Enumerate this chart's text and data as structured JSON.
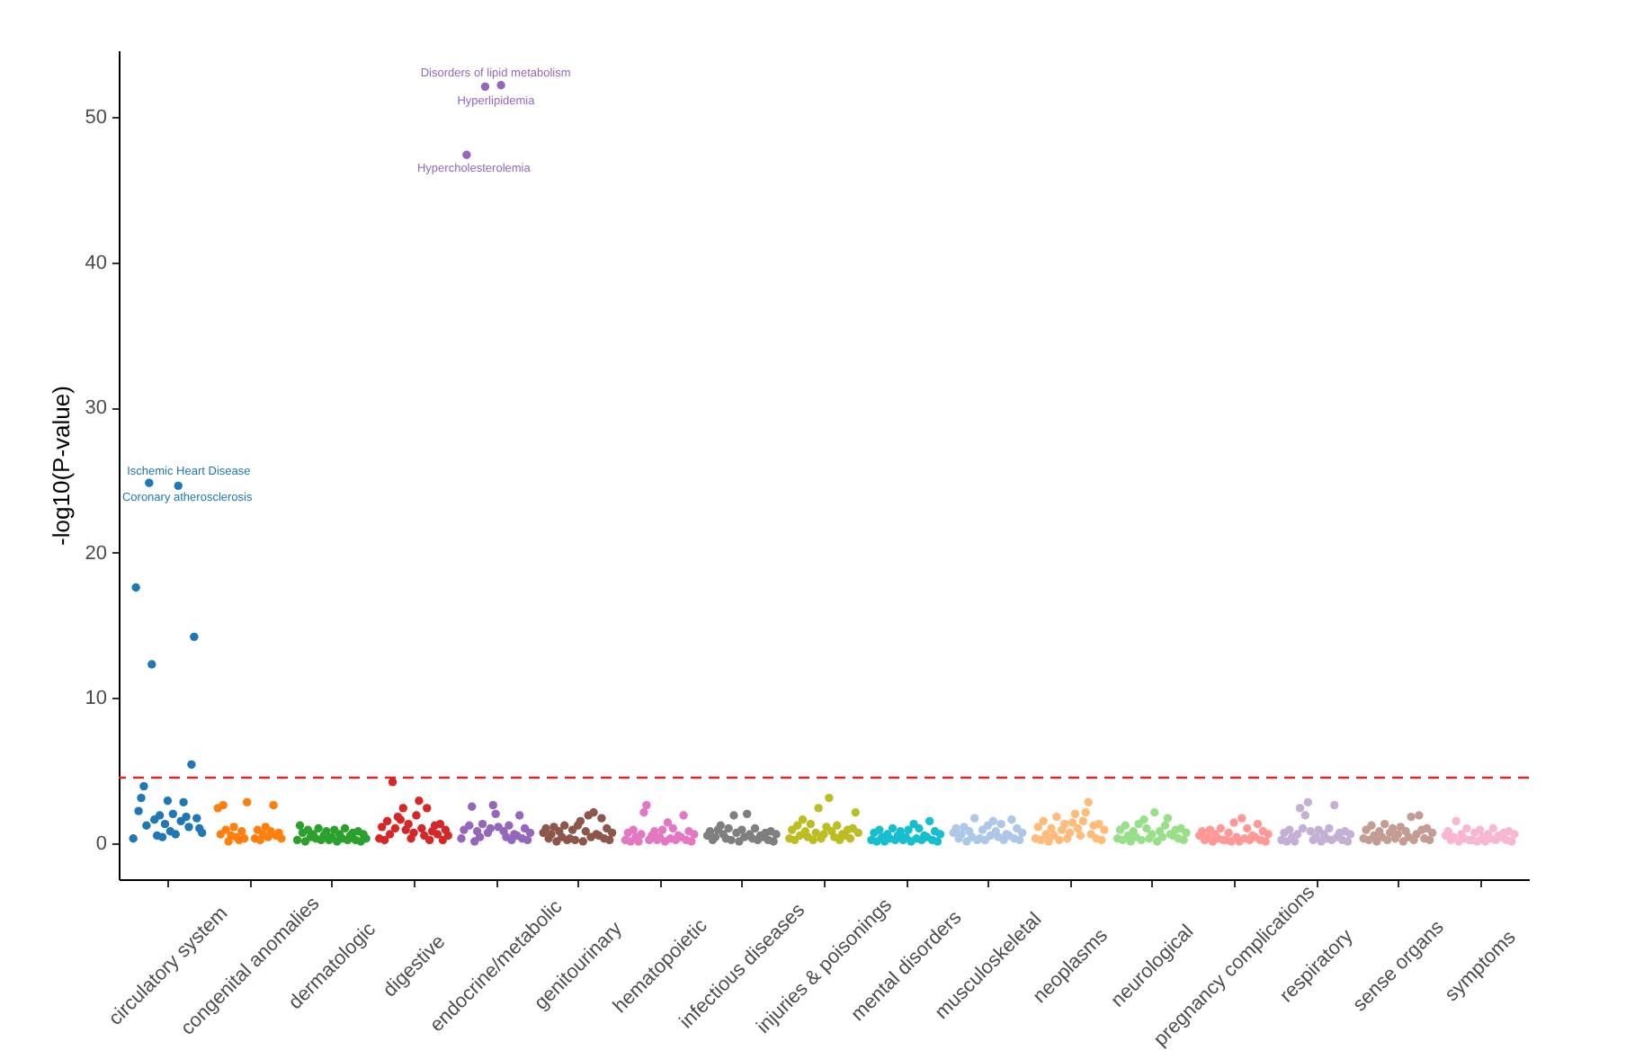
{
  "chart_data": {
    "type": "scatter",
    "ylabel": "-log10(P-value)",
    "marker": "circle",
    "ylim": [
      -2.5,
      54.6
    ],
    "yticks": [
      0,
      10,
      20,
      30,
      40,
      50
    ],
    "ref_lines": [
      {
        "axis": "y",
        "value": 4.5,
        "color": "#d62728",
        "line_style": "dashed"
      }
    ],
    "annotations": [
      {
        "text": "Ischemic Heart Disease",
        "y": 24.8
      },
      {
        "text": "Coronary atherosclerosis",
        "y": 24.6
      },
      {
        "text": "Disorders of lipid metabolism",
        "y": 52.2
      },
      {
        "text": "Hyperlipidemia",
        "y": 52.1
      },
      {
        "text": "Hypercholesterolemia",
        "y": 47.4
      }
    ],
    "categories": [
      null,
      null,
      null,
      null,
      null,
      null,
      null,
      null,
      null,
      null,
      null,
      null,
      null,
      null,
      null,
      null,
      null,
      null,
      "circulatory system",
      null,
      null,
      null,
      null,
      null,
      null,
      null,
      null,
      null,
      null,
      null,
      null,
      null,
      null,
      null,
      null,
      null,
      null,
      null,
      null,
      null,
      null,
      null,
      null,
      null,
      null,
      null,
      null,
      null,
      null,
      "congenital anomalies",
      null,
      null,
      null,
      null,
      null,
      null,
      null,
      null,
      null,
      null,
      null,
      null,
      null,
      null,
      null,
      null,
      null,
      null,
      null,
      null,
      null,
      null,
      null,
      null,
      null,
      null,
      null,
      null,
      null,
      null,
      "dermatologic",
      null,
      null,
      null,
      null,
      null,
      null,
      null,
      null,
      null,
      null,
      null,
      null,
      null,
      null,
      null,
      null,
      null,
      null,
      null,
      null,
      null,
      null,
      null,
      null,
      null,
      null,
      null,
      null,
      null,
      null,
      "digestive",
      null,
      null,
      null,
      null,
      null,
      null,
      null,
      null,
      null,
      null,
      null,
      null,
      null,
      null,
      null,
      null,
      null,
      null,
      null,
      null,
      null,
      null,
      null,
      null,
      null,
      null,
      null,
      null,
      null,
      null,
      "endocrine/metabolic",
      null,
      null,
      null,
      null,
      null,
      null,
      null,
      null,
      null,
      null,
      null,
      null,
      null,
      null,
      null,
      null,
      null,
      null,
      null,
      null,
      null,
      null,
      null,
      null,
      null,
      null,
      null,
      null,
      null,
      null,
      "genitourinary",
      null,
      null,
      null,
      null,
      null,
      null,
      null,
      null,
      null,
      null,
      null,
      null,
      null,
      null,
      null,
      null,
      null,
      null,
      null,
      null,
      null,
      null,
      null,
      null,
      null,
      null,
      null,
      null,
      null,
      null,
      "hematopoietic",
      null,
      null,
      null,
      null,
      null,
      null,
      null,
      null,
      null,
      null,
      null,
      null,
      null,
      null,
      null,
      null,
      null,
      null,
      null,
      null,
      null,
      null,
      null,
      null,
      null,
      null,
      null,
      null,
      null,
      null,
      "infectious diseases",
      null,
      null,
      null,
      null,
      null,
      null,
      null,
      null,
      null,
      null,
      null,
      null,
      null,
      null,
      null,
      null,
      null,
      null,
      null,
      null,
      null,
      null,
      null,
      null,
      null,
      null,
      null,
      null,
      null,
      null,
      "injuries & poisonings",
      null,
      null,
      null,
      null,
      null,
      null,
      null,
      null,
      null,
      null,
      null,
      null,
      null,
      null,
      null,
      null,
      null,
      null,
      null,
      null,
      null,
      null,
      null,
      null,
      null,
      null,
      null,
      null,
      null,
      null,
      "mental disorders",
      null,
      null,
      null,
      null,
      null,
      null,
      null,
      null,
      null,
      null,
      null,
      null,
      null,
      null,
      null,
      null,
      null,
      null,
      null,
      null,
      null,
      null,
      null,
      null,
      null,
      null,
      null,
      null,
      null,
      null,
      "musculoskeletal",
      null,
      null,
      null,
      null,
      null,
      null,
      null,
      null,
      null,
      null,
      null,
      null,
      null,
      null,
      null,
      null,
      null,
      null,
      null,
      null,
      null,
      null,
      null,
      null,
      null,
      null,
      null,
      null,
      null,
      null,
      "neoplasms",
      null,
      null,
      null,
      null,
      null,
      null,
      null,
      null,
      null,
      null,
      null,
      null,
      null,
      null,
      null,
      null,
      null,
      null,
      null,
      null,
      null,
      null,
      null,
      null,
      null,
      null,
      null,
      null,
      null,
      null,
      "neurological",
      null,
      null,
      null,
      null,
      null,
      null,
      null,
      null,
      null,
      null,
      null,
      null,
      null,
      null,
      null,
      null,
      null,
      null,
      null,
      null,
      null,
      null,
      null,
      null,
      null,
      null,
      null,
      null,
      null,
      null,
      "pregnancy complications",
      null,
      null,
      null,
      null,
      null,
      null,
      null,
      null,
      null,
      null,
      null,
      null,
      null,
      null,
      null,
      null,
      null,
      null,
      null,
      null,
      null,
      null,
      null,
      null,
      null,
      null,
      null,
      null,
      null,
      null,
      "respiratory",
      null,
      null,
      null,
      null,
      null,
      null,
      null,
      null,
      null,
      null,
      null,
      null,
      null,
      null,
      null,
      null,
      null,
      null,
      null,
      null,
      null,
      null,
      null,
      null,
      null,
      null,
      null,
      null,
      null,
      null,
      "sense organs",
      null,
      null,
      null,
      null,
      null,
      null,
      null,
      null,
      null,
      null,
      null,
      null,
      null,
      null,
      null,
      null,
      null,
      null,
      null,
      null,
      null,
      null,
      null,
      null,
      null,
      null,
      null,
      null,
      null,
      null,
      "symptoms",
      null,
      null,
      null,
      null,
      null,
      null,
      null,
      null,
      null,
      null,
      null,
      null,
      null,
      null,
      null,
      null,
      null,
      null
    ],
    "values": [
      null,
      null,
      null,
      null,
      null,
      0.3,
      17.6,
      2.2,
      3.1,
      3.9,
      1.2,
      24.8,
      12.3,
      1.6,
      0.5,
      1.9,
      0.4,
      1.3,
      2.9,
      0.8,
      2.0,
      0.6,
      24.6,
      1.5,
      2.8,
      1.8,
      1.1,
      5.4,
      14.2,
      1.7,
      1.0,
      0.7,
      null,
      null,
      null,
      null,
      null,
      2.4,
      0.6,
      2.6,
      0.9,
      0.1,
      0.5,
      1.1,
      0.4,
      0.2,
      0.8,
      0.3,
      2.8,
      null,
      null,
      0.3,
      0.9,
      0.2,
      0.6,
      1.1,
      0.4,
      0.8,
      2.6,
      0.5,
      0.7,
      0.3,
      null,
      null,
      null,
      null,
      null,
      0.2,
      1.2,
      0.7,
      0.1,
      0.9,
      0.4,
      0.6,
      0.3,
      1.0,
      0.2,
      0.5,
      0.8,
      0.2,
      0.4,
      0.9,
      0.1,
      0.6,
      0.3,
      1.0,
      0.2,
      0.5,
      0.7,
      0.2,
      0.8,
      0.1,
      0.6,
      0.3,
      null,
      null,
      null,
      null,
      0.3,
      1.1,
      0.2,
      1.5,
      0.6,
      4.2,
      1.0,
      1.8,
      1.6,
      2.4,
      0.9,
      1.3,
      0.3,
      0.7,
      1.9,
      2.9,
      1.0,
      0.5,
      2.4,
      0.2,
      0.8,
      1.2,
      0.6,
      1.3,
      0.2,
      0.9,
      0.5,
      null,
      null,
      null,
      null,
      0.3,
      0.9,
      47.4,
      1.2,
      2.5,
      0.1,
      0.8,
      0.4,
      1.3,
      52.1,
      0.7,
      1.0,
      2.6,
      2.0,
      1.1,
      52.2,
      0.8,
      0.4,
      1.2,
      0.2,
      0.6,
      0.5,
      1.9,
      0.3,
      1.0,
      0.2,
      0.7,
      null,
      null,
      null,
      null,
      0.7,
      1.0,
      0.3,
      0.6,
      1.1,
      0.1,
      0.8,
      0.4,
      1.2,
      0.2,
      0.3,
      0.9,
      0.2,
      1.2,
      1.5,
      0.1,
      0.8,
      1.9,
      0.4,
      2.1,
      0.6,
      0.5,
      1.7,
      0.3,
      1.0,
      0.2,
      0.7,
      null,
      null,
      null,
      null,
      0.2,
      0.7,
      0.1,
      0.9,
      0.4,
      0.1,
      0.6,
      2.1,
      2.6,
      0.2,
      0.5,
      0.8,
      0.2,
      0.4,
      0.9,
      0.1,
      1.4,
      0.3,
      1.0,
      0.2,
      0.5,
      0.4,
      1.9,
      0.2,
      0.8,
      0.1,
      0.6,
      null,
      null,
      null,
      null,
      0.5,
      0.8,
      0.2,
      0.4,
      0.9,
      1.2,
      0.6,
      0.3,
      1.0,
      0.2,
      1.9,
      0.7,
      0.1,
      0.9,
      0.4,
      2.0,
      0.6,
      0.3,
      1.0,
      0.2,
      0.5,
      0.4,
      0.7,
      0.2,
      0.8,
      0.1,
      0.6,
      null,
      null,
      null,
      null,
      0.3,
      0.9,
      0.2,
      1.2,
      0.5,
      1.6,
      0.8,
      0.4,
      1.3,
      0.2,
      0.7,
      2.4,
      0.3,
      0.6,
      1.1,
      3.1,
      0.8,
      0.4,
      1.2,
      0.2,
      0.6,
      0.5,
      0.9,
      0.3,
      1.0,
      2.1,
      0.7,
      null,
      null,
      null,
      null,
      0.2,
      0.7,
      0.1,
      0.9,
      0.4,
      0.1,
      0.6,
      0.3,
      1.0,
      0.2,
      0.5,
      0.8,
      0.2,
      0.4,
      0.9,
      0.1,
      1.3,
      0.3,
      1.0,
      0.2,
      0.5,
      0.4,
      1.5,
      0.2,
      0.8,
      0.1,
      0.6,
      null,
      null,
      null,
      null,
      0.7,
      1.0,
      0.3,
      0.6,
      1.1,
      0.1,
      0.8,
      0.4,
      1.7,
      0.2,
      0.3,
      0.9,
      0.2,
      1.2,
      0.5,
      1.5,
      0.8,
      0.4,
      1.3,
      0.2,
      0.6,
      0.5,
      1.6,
      0.3,
      1.0,
      0.2,
      0.7,
      null,
      null,
      null,
      null,
      0.3,
      1.1,
      0.2,
      1.5,
      0.6,
      0.1,
      1.0,
      0.5,
      1.8,
      0.2,
      0.9,
      1.3,
      0.3,
      0.7,
      1.4,
      2.0,
      1.0,
      0.5,
      1.5,
      2.1,
      2.8,
      0.6,
      1.2,
      0.3,
      1.3,
      0.2,
      0.9,
      null,
      null,
      null,
      null,
      0.3,
      0.9,
      0.2,
      1.2,
      0.5,
      0.1,
      0.8,
      0.4,
      1.3,
      0.2,
      1.6,
      1.0,
      0.3,
      0.6,
      2.1,
      0.1,
      0.8,
      0.4,
      1.2,
      1.7,
      0.6,
      0.5,
      0.9,
      0.3,
      1.0,
      0.2,
      0.7,
      null,
      null,
      null,
      null,
      0.5,
      0.8,
      0.2,
      0.4,
      0.9,
      0.1,
      0.6,
      0.3,
      1.0,
      0.2,
      0.2,
      0.7,
      0.1,
      1.4,
      0.4,
      0.1,
      1.7,
      0.3,
      1.0,
      0.2,
      0.5,
      0.4,
      1.3,
      0.2,
      0.8,
      0.1,
      0.6,
      null,
      null,
      null,
      null,
      0.2,
      0.7,
      0.1,
      0.9,
      0.4,
      0.1,
      0.6,
      2.4,
      1.0,
      1.9,
      2.8,
      0.8,
      0.2,
      0.4,
      0.9,
      0.1,
      0.6,
      0.3,
      1.0,
      0.2,
      2.6,
      0.4,
      0.7,
      0.2,
      0.8,
      0.1,
      0.6,
      null,
      null,
      null,
      null,
      0.3,
      0.9,
      0.2,
      1.2,
      0.5,
      0.1,
      0.8,
      0.4,
      1.3,
      0.2,
      0.7,
      1.0,
      0.3,
      0.6,
      1.1,
      0.1,
      0.8,
      0.4,
      1.8,
      0.2,
      0.6,
      1.9,
      0.9,
      0.3,
      1.0,
      0.2,
      0.7,
      null,
      null,
      null,
      null,
      0.5,
      0.8,
      0.2,
      0.4,
      1.5,
      0.1,
      0.6,
      0.3,
      1.0,
      0.2,
      0.2,
      0.7,
      0.1,
      0.9,
      0.4,
      0.1,
      0.6,
      0.3,
      1.0,
      0.2,
      0.5,
      0.4,
      0.7,
      0.2,
      0.8,
      0.1,
      0.6,
      null,
      null,
      null,
      null,
      null
    ],
    "colors": [
      null,
      null,
      null,
      "#1f77b4",
      "#1f77b4",
      "#1f77b4",
      "#1f77b4",
      "#1f77b4",
      "#1f77b4",
      "#1f77b4",
      "#1f77b4",
      "#1f77b4",
      "#1f77b4",
      "#1f77b4",
      "#1f77b4",
      "#1f77b4",
      "#1f77b4",
      "#1f77b4",
      "#1f77b4",
      "#1f77b4",
      "#1f77b4",
      "#1f77b4",
      "#1f77b4",
      "#1f77b4",
      "#1f77b4",
      "#1f77b4",
      "#1f77b4",
      "#1f77b4",
      "#1f77b4",
      "#1f77b4",
      "#1f77b4",
      "#1f77b4",
      "#1f77b4",
      "#1f77b4",
      "#ff7f0e",
      "#ff7f0e",
      "#ff7f0e",
      "#ff7f0e",
      "#ff7f0e",
      "#ff7f0e",
      "#ff7f0e",
      "#ff7f0e",
      "#ff7f0e",
      "#ff7f0e",
      "#ff7f0e",
      "#ff7f0e",
      "#ff7f0e",
      "#ff7f0e",
      "#ff7f0e",
      "#ff7f0e",
      "#ff7f0e",
      "#ff7f0e",
      "#ff7f0e",
      "#ff7f0e",
      "#ff7f0e",
      "#ff7f0e",
      "#ff7f0e",
      "#ff7f0e",
      "#ff7f0e",
      "#ff7f0e",
      "#ff7f0e",
      "#ff7f0e",
      "#ff7f0e",
      "#ff7f0e",
      "#ff7f0e",
      "#2ca02c",
      "#2ca02c",
      "#2ca02c",
      "#2ca02c",
      "#2ca02c",
      "#2ca02c",
      "#2ca02c",
      "#2ca02c",
      "#2ca02c",
      "#2ca02c",
      "#2ca02c",
      "#2ca02c",
      "#2ca02c",
      "#2ca02c",
      "#2ca02c",
      "#2ca02c",
      "#2ca02c",
      "#2ca02c",
      "#2ca02c",
      "#2ca02c",
      "#2ca02c",
      "#2ca02c",
      "#2ca02c",
      "#2ca02c",
      "#2ca02c",
      "#2ca02c",
      "#2ca02c",
      "#2ca02c",
      "#2ca02c",
      "#2ca02c",
      "#2ca02c",
      "#d62728",
      "#d62728",
      "#d62728",
      "#d62728",
      "#d62728",
      "#d62728",
      "#d62728",
      "#d62728",
      "#d62728",
      "#d62728",
      "#d62728",
      "#d62728",
      "#d62728",
      "#d62728",
      "#d62728",
      "#d62728",
      "#d62728",
      "#d62728",
      "#d62728",
      "#d62728",
      "#d62728",
      "#d62728",
      "#d62728",
      "#d62728",
      "#d62728",
      "#d62728",
      "#d62728",
      "#d62728",
      "#d62728",
      "#d62728",
      "#d62728",
      "#9467bd",
      "#9467bd",
      "#9467bd",
      "#9467bd",
      "#9467bd",
      "#9467bd",
      "#9467bd",
      "#9467bd",
      "#9467bd",
      "#9467bd",
      "#9467bd",
      "#9467bd",
      "#9467bd",
      "#9467bd",
      "#9467bd",
      "#9467bd",
      "#9467bd",
      "#9467bd",
      "#9467bd",
      "#9467bd",
      "#9467bd",
      "#9467bd",
      "#9467bd",
      "#9467bd",
      "#9467bd",
      "#9467bd",
      "#9467bd",
      "#9467bd",
      "#9467bd",
      "#9467bd",
      "#9467bd",
      "#8c564b",
      "#8c564b",
      "#8c564b",
      "#8c564b",
      "#8c564b",
      "#8c564b",
      "#8c564b",
      "#8c564b",
      "#8c564b",
      "#8c564b",
      "#8c564b",
      "#8c564b",
      "#8c564b",
      "#8c564b",
      "#8c564b",
      "#8c564b",
      "#8c564b",
      "#8c564b",
      "#8c564b",
      "#8c564b",
      "#8c564b",
      "#8c564b",
      "#8c564b",
      "#8c564b",
      "#8c564b",
      "#8c564b",
      "#8c564b",
      "#8c564b",
      "#8c564b",
      "#8c564b",
      "#8c564b",
      "#e377c2",
      "#e377c2",
      "#e377c2",
      "#e377c2",
      "#e377c2",
      "#e377c2",
      "#e377c2",
      "#e377c2",
      "#e377c2",
      "#e377c2",
      "#e377c2",
      "#e377c2",
      "#e377c2",
      "#e377c2",
      "#e377c2",
      "#e377c2",
      "#e377c2",
      "#e377c2",
      "#e377c2",
      "#e377c2",
      "#e377c2",
      "#e377c2",
      "#e377c2",
      "#e377c2",
      "#e377c2",
      "#e377c2",
      "#e377c2",
      "#e377c2",
      "#e377c2",
      "#e377c2",
      "#e377c2",
      "#7f7f7f",
      "#7f7f7f",
      "#7f7f7f",
      "#7f7f7f",
      "#7f7f7f",
      "#7f7f7f",
      "#7f7f7f",
      "#7f7f7f",
      "#7f7f7f",
      "#7f7f7f",
      "#7f7f7f",
      "#7f7f7f",
      "#7f7f7f",
      "#7f7f7f",
      "#7f7f7f",
      "#7f7f7f",
      "#7f7f7f",
      "#7f7f7f",
      "#7f7f7f",
      "#7f7f7f",
      "#7f7f7f",
      "#7f7f7f",
      "#7f7f7f",
      "#7f7f7f",
      "#7f7f7f",
      "#7f7f7f",
      "#7f7f7f",
      "#7f7f7f",
      "#7f7f7f",
      "#7f7f7f",
      "#7f7f7f",
      "#bcbd22",
      "#bcbd22",
      "#bcbd22",
      "#bcbd22",
      "#bcbd22",
      "#bcbd22",
      "#bcbd22",
      "#bcbd22",
      "#bcbd22",
      "#bcbd22",
      "#bcbd22",
      "#bcbd22",
      "#bcbd22",
      "#bcbd22",
      "#bcbd22",
      "#bcbd22",
      "#bcbd22",
      "#bcbd22",
      "#bcbd22",
      "#bcbd22",
      "#bcbd22",
      "#bcbd22",
      "#bcbd22",
      "#bcbd22",
      "#bcbd22",
      "#bcbd22",
      "#bcbd22",
      "#bcbd22",
      "#bcbd22",
      "#bcbd22",
      "#bcbd22",
      "#17becf",
      "#17becf",
      "#17becf",
      "#17becf",
      "#17becf",
      "#17becf",
      "#17becf",
      "#17becf",
      "#17becf",
      "#17becf",
      "#17becf",
      "#17becf",
      "#17becf",
      "#17becf",
      "#17becf",
      "#17becf",
      "#17becf",
      "#17becf",
      "#17becf",
      "#17becf",
      "#17becf",
      "#17becf",
      "#17becf",
      "#17becf",
      "#17becf",
      "#17becf",
      "#17becf",
      "#17becf",
      "#17becf",
      "#17becf",
      "#17becf",
      "#aec7e8",
      "#aec7e8",
      "#aec7e8",
      "#aec7e8",
      "#aec7e8",
      "#aec7e8",
      "#aec7e8",
      "#aec7e8",
      "#aec7e8",
      "#aec7e8",
      "#aec7e8",
      "#aec7e8",
      "#aec7e8",
      "#aec7e8",
      "#aec7e8",
      "#aec7e8",
      "#aec7e8",
      "#aec7e8",
      "#aec7e8",
      "#aec7e8",
      "#aec7e8",
      "#aec7e8",
      "#aec7e8",
      "#aec7e8",
      "#aec7e8",
      "#aec7e8",
      "#aec7e8",
      "#aec7e8",
      "#aec7e8",
      "#aec7e8",
      "#aec7e8",
      "#ffbb78",
      "#ffbb78",
      "#ffbb78",
      "#ffbb78",
      "#ffbb78",
      "#ffbb78",
      "#ffbb78",
      "#ffbb78",
      "#ffbb78",
      "#ffbb78",
      "#ffbb78",
      "#ffbb78",
      "#ffbb78",
      "#ffbb78",
      "#ffbb78",
      "#ffbb78",
      "#ffbb78",
      "#ffbb78",
      "#ffbb78",
      "#ffbb78",
      "#ffbb78",
      "#ffbb78",
      "#ffbb78",
      "#ffbb78",
      "#ffbb78",
      "#ffbb78",
      "#ffbb78",
      "#ffbb78",
      "#ffbb78",
      "#ffbb78",
      "#ffbb78",
      "#98df8a",
      "#98df8a",
      "#98df8a",
      "#98df8a",
      "#98df8a",
      "#98df8a",
      "#98df8a",
      "#98df8a",
      "#98df8a",
      "#98df8a",
      "#98df8a",
      "#98df8a",
      "#98df8a",
      "#98df8a",
      "#98df8a",
      "#98df8a",
      "#98df8a",
      "#98df8a",
      "#98df8a",
      "#98df8a",
      "#98df8a",
      "#98df8a",
      "#98df8a",
      "#98df8a",
      "#98df8a",
      "#98df8a",
      "#98df8a",
      "#98df8a",
      "#98df8a",
      "#98df8a",
      "#98df8a",
      "#ff9896",
      "#ff9896",
      "#ff9896",
      "#ff9896",
      "#ff9896",
      "#ff9896",
      "#ff9896",
      "#ff9896",
      "#ff9896",
      "#ff9896",
      "#ff9896",
      "#ff9896",
      "#ff9896",
      "#ff9896",
      "#ff9896",
      "#ff9896",
      "#ff9896",
      "#ff9896",
      "#ff9896",
      "#ff9896",
      "#ff9896",
      "#ff9896",
      "#ff9896",
      "#ff9896",
      "#ff9896",
      "#ff9896",
      "#ff9896",
      "#ff9896",
      "#ff9896",
      "#ff9896",
      "#ff9896",
      "#c5b0d5",
      "#c5b0d5",
      "#c5b0d5",
      "#c5b0d5",
      "#c5b0d5",
      "#c5b0d5",
      "#c5b0d5",
      "#c5b0d5",
      "#c5b0d5",
      "#c5b0d5",
      "#c5b0d5",
      "#c5b0d5",
      "#c5b0d5",
      "#c5b0d5",
      "#c5b0d5",
      "#c5b0d5",
      "#c5b0d5",
      "#c5b0d5",
      "#c5b0d5",
      "#c5b0d5",
      "#c5b0d5",
      "#c5b0d5",
      "#c5b0d5",
      "#c5b0d5",
      "#c5b0d5",
      "#c5b0d5",
      "#c5b0d5",
      "#c5b0d5",
      "#c5b0d5",
      "#c5b0d5",
      "#c5b0d5",
      "#c49c94",
      "#c49c94",
      "#c49c94",
      "#c49c94",
      "#c49c94",
      "#c49c94",
      "#c49c94",
      "#c49c94",
      "#c49c94",
      "#c49c94",
      "#c49c94",
      "#c49c94",
      "#c49c94",
      "#c49c94",
      "#c49c94",
      "#c49c94",
      "#c49c94",
      "#c49c94",
      "#c49c94",
      "#c49c94",
      "#c49c94",
      "#c49c94",
      "#c49c94",
      "#c49c94",
      "#c49c94",
      "#c49c94",
      "#c49c94",
      "#c49c94",
      "#c49c94",
      "#c49c94",
      "#c49c94",
      "#f7b6d2",
      "#f7b6d2",
      "#f7b6d2",
      "#f7b6d2",
      "#f7b6d2",
      "#f7b6d2",
      "#f7b6d2",
      "#f7b6d2",
      "#f7b6d2",
      "#f7b6d2",
      "#f7b6d2",
      "#f7b6d2",
      "#f7b6d2",
      "#f7b6d2",
      "#f7b6d2",
      "#f7b6d2",
      "#f7b6d2",
      "#f7b6d2",
      "#f7b6d2",
      "#f7b6d2",
      "#f7b6d2",
      "#f7b6d2",
      "#f7b6d2",
      "#f7b6d2",
      "#f7b6d2",
      "#f7b6d2",
      "#f7b6d2",
      "#f7b6d2",
      "#f7b6d2",
      "#f7b6d2",
      "#f7b6d2",
      null,
      null,
      null
    ]
  }
}
